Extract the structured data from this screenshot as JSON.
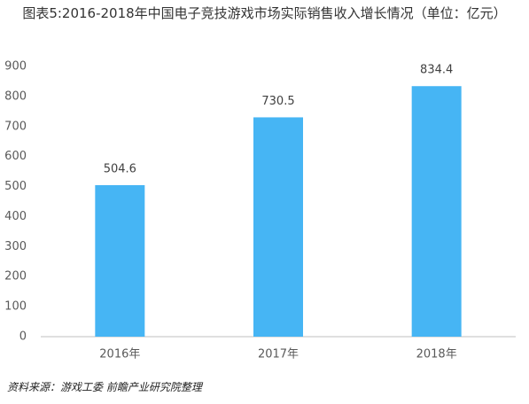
{
  "chart_data": {
    "type": "bar",
    "title": "图表5:2016-2018年中国电子竞技游戏市场实际销售收入增长情况（单位：亿元）",
    "categories": [
      "2016年",
      "2017年",
      "2018年"
    ],
    "values": [
      504.6,
      730.5,
      834.4
    ],
    "color": "#46b5f4",
    "ylim": [
      0,
      900
    ],
    "yticks": [
      0,
      100,
      200,
      300,
      400,
      500,
      600,
      700,
      800,
      900
    ],
    "grid": false,
    "source": "资料来源：游戏工委  前瞻产业研究院整理"
  }
}
